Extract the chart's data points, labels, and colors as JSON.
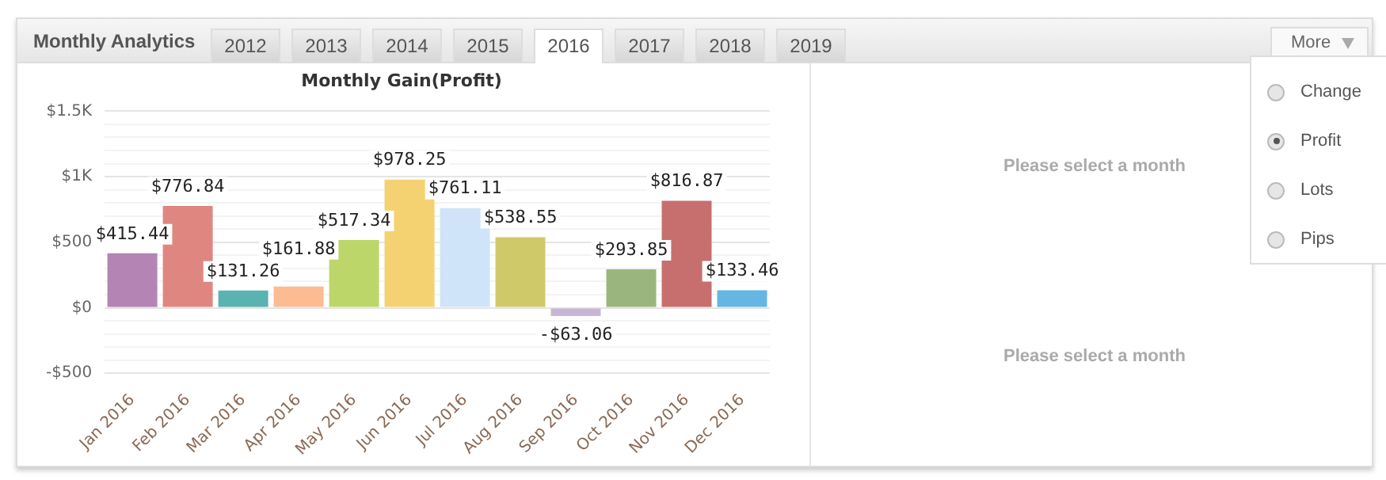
{
  "chart_data": {
    "type": "bar",
    "title": "Monthly Gain(Profit)",
    "categories": [
      "Jan 2016",
      "Feb 2016",
      "Mar 2016",
      "Apr 2016",
      "May 2016",
      "Jun 2016",
      "Jul 2016",
      "Aug 2016",
      "Sep 2016",
      "Oct 2016",
      "Nov 2016",
      "Dec 2016"
    ],
    "values": [
      415.44,
      776.84,
      131.26,
      161.88,
      517.34,
      978.25,
      761.11,
      538.55,
      -63.06,
      293.85,
      816.87,
      133.46
    ],
    "value_labels": [
      "$415.44",
      "$776.84",
      "$131.26",
      "$161.88",
      "$517.34",
      "$978.25",
      "$761.11",
      "$538.55",
      "-$63.06",
      "$293.85",
      "$816.87",
      "$133.46"
    ],
    "colors": [
      "#b384b4",
      "#e08680",
      "#5ab3b0",
      "#fdbb91",
      "#bdd66a",
      "#f4d272",
      "#cfe4f8",
      "#d0c96a",
      "#c7b6d6",
      "#9bb57f",
      "#c76f6f",
      "#65b6e2"
    ],
    "ylim": [
      -500,
      1500
    ],
    "yticks": [
      {
        "value": -500,
        "label": "-$500"
      },
      {
        "value": -400,
        "label": null
      },
      {
        "value": -300,
        "label": null
      },
      {
        "value": -200,
        "label": null
      },
      {
        "value": -100,
        "label": null
      },
      {
        "value": 0,
        "label": "$0"
      },
      {
        "value": 100,
        "label": null
      },
      {
        "value": 200,
        "label": null
      },
      {
        "value": 300,
        "label": null
      },
      {
        "value": 400,
        "label": null
      },
      {
        "value": 500,
        "label": "$500"
      },
      {
        "value": 600,
        "label": null
      },
      {
        "value": 700,
        "label": null
      },
      {
        "value": 800,
        "label": null
      },
      {
        "value": 900,
        "label": null
      },
      {
        "value": 1000,
        "label": "$1K"
      },
      {
        "value": 1100,
        "label": null
      },
      {
        "value": 1200,
        "label": null
      },
      {
        "value": 1300,
        "label": null
      },
      {
        "value": 1400,
        "label": null
      },
      {
        "value": 1500,
        "label": "$1.5K"
      }
    ],
    "grid": "y",
    "legend": false,
    "annotations": [
      "Monthly Analytics",
      "2012",
      "2013",
      "2014",
      "2015",
      "2016",
      "2017",
      "2018",
      "2019",
      "More",
      "Change",
      "Profit",
      "Lots",
      "Pips",
      "Please select a month",
      "Please select a month"
    ]
  }
}
